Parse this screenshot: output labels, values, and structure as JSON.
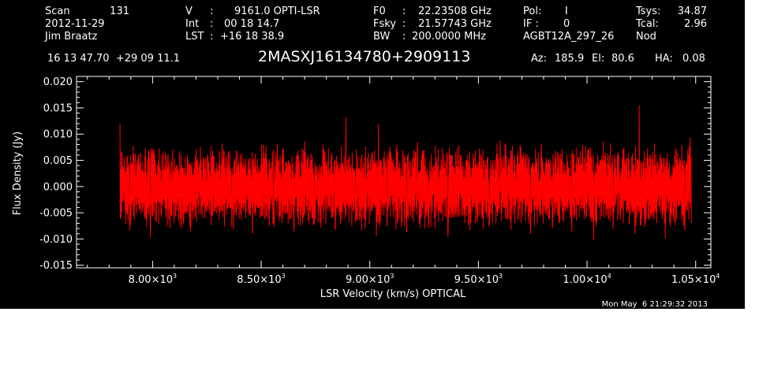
{
  "header": {
    "scan_label": "Scan",
    "scan_value": "131",
    "date": "2012-11-29",
    "observer": "Jim Braatz",
    "v_label": "V",
    "v_sep": ":",
    "v_value": "9161.0 OPTI-LSR",
    "int_label": "Int",
    "int_sep": ":",
    "int_value": "00 18 14.7",
    "lst_label": "LST",
    "lst_sep": ":",
    "lst_value": "+16 18 38.9",
    "f0_label": "F0",
    "f0_sep": ":",
    "f0_value": "22.23508 GHz",
    "fsky_label": "Fsky",
    "fsky_sep": ":",
    "fsky_value": "21.57743 GHz",
    "bw_label": "BW",
    "bw_sep": ":",
    "bw_value": "200.0000 MHz",
    "pol_label": "Pol:",
    "pol_value": "I",
    "if_label": "IF :",
    "if_value": "0",
    "project": "AGBT12A_297_26",
    "tsys_label": "Tsys:",
    "tsys_value": "34.87",
    "tcal_label": "Tcal:",
    "tcal_value": "2.96",
    "proc": "Nod",
    "coords": "16 13 47.70  +29 09 11.1",
    "source": "2MASXJ16134780+2909113",
    "az_label": "Az:",
    "az_value": "185.9",
    "el_label": "El:",
    "el_value": "80.6",
    "ha_label": "HA:",
    "ha_value": "0.08"
  },
  "footer": {
    "timestamp": "Mon May  6 21:29:32 2013"
  },
  "colors": {
    "background": "#000000",
    "axes": "#ffffff",
    "trace": "#ff0000"
  },
  "chart_data": {
    "type": "line",
    "title": "",
    "xlabel": "LSR Velocity (km/s) OPTICAL",
    "ylabel": "Flux Density (Jy)",
    "xlim": [
      7650,
      10570
    ],
    "ylim": [
      -0.0155,
      0.021
    ],
    "x_ticks": [
      {
        "value": 8000,
        "mantissa": "8.00",
        "exponent": "3"
      },
      {
        "value": 8500,
        "mantissa": "8.50",
        "exponent": "3"
      },
      {
        "value": 9000,
        "mantissa": "9.00",
        "exponent": "3"
      },
      {
        "value": 9500,
        "mantissa": "9.50",
        "exponent": "3"
      },
      {
        "value": 10000,
        "mantissa": "1.00",
        "exponent": "4"
      },
      {
        "value": 10500,
        "mantissa": "1.05",
        "exponent": "4"
      }
    ],
    "y_ticks": [
      {
        "value": 0.02,
        "label": "0.020"
      },
      {
        "value": 0.015,
        "label": "0.015"
      },
      {
        "value": 0.01,
        "label": "0.010"
      },
      {
        "value": 0.005,
        "label": "0.005"
      },
      {
        "value": 0.0,
        "label": "0.000"
      },
      {
        "value": -0.005,
        "label": "-0.005"
      },
      {
        "value": -0.01,
        "label": "-0.010"
      },
      {
        "value": -0.015,
        "label": "-0.015"
      }
    ],
    "grid": false,
    "series": [
      {
        "color": "#ff0000",
        "x": [
          7850,
          7895,
          7945,
          7990,
          8030,
          8080,
          8125,
          8175,
          8220,
          8270,
          8320,
          8365,
          8410,
          8460,
          8510,
          8555,
          8600,
          8650,
          8700,
          8745,
          8790,
          8840,
          8890,
          8935,
          8980,
          9030,
          9040,
          9080,
          9125,
          9170,
          9220,
          9270,
          9315,
          9360,
          9410,
          9460,
          9505,
          9550,
          9600,
          9650,
          9695,
          9740,
          9790,
          9840,
          9885,
          9930,
          9980,
          10030,
          10075,
          10120,
          10170,
          10220,
          10240,
          10265,
          10310,
          10360,
          10410,
          10450,
          10475,
          10480
        ],
        "y": [
          0.0118,
          -0.0082,
          0.0062,
          -0.0095,
          0.0071,
          -0.0078,
          0.0066,
          -0.0085,
          0.0074,
          -0.0072,
          0.0081,
          -0.0076,
          0.0063,
          -0.0088,
          0.0079,
          -0.0069,
          0.0072,
          -0.0084,
          0.0085,
          -0.0071,
          0.0068,
          -0.0079,
          0.0131,
          -0.0066,
          0.0074,
          -0.0093,
          0.0118,
          -0.0074,
          0.0078,
          -0.0086,
          0.0083,
          -0.0077,
          0.0069,
          -0.0095,
          0.0077,
          -0.0082,
          0.0071,
          -0.0074,
          0.0086,
          -0.0081,
          0.0074,
          -0.0089,
          0.0081,
          -0.0077,
          0.0069,
          -0.0084,
          0.0077,
          -0.0101,
          0.0084,
          -0.0079,
          0.0073,
          -0.0088,
          0.0153,
          -0.0075,
          0.0081,
          -0.0097,
          0.0071,
          -0.0082,
          0.0092,
          -0.0068
        ]
      }
    ]
  }
}
